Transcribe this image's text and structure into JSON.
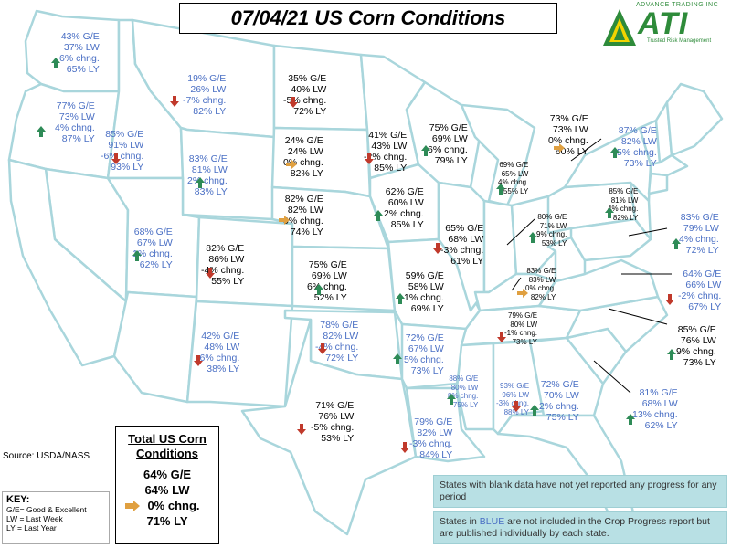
{
  "title": "07/04/21 US Corn Conditions",
  "logo": {
    "top_text": "ADVANCE TRADING INC",
    "name": "ATI",
    "tagline": "Trusted Risk Management",
    "color": "#2e8b3a"
  },
  "colors": {
    "blue_text": "#4a6fc4",
    "up_arrow": "#2e8b57",
    "down_arrow": "#c0392b",
    "neutral_arrow": "#e0a040",
    "state_fill": "#ffffff",
    "state_stroke": "#a9d6dc"
  },
  "states": [
    {
      "id": "wa",
      "color": "blue",
      "trend": "up",
      "lines": [
        "43% G/E",
        "37% LW",
        "6% chng.",
        "65% LY"
      ]
    },
    {
      "id": "or",
      "color": "blue",
      "trend": "up",
      "lines": [
        "77% G/E",
        "73% LW",
        "4% chng.",
        "87% LY"
      ]
    },
    {
      "id": "id",
      "color": "blue",
      "trend": "down",
      "lines": [
        "85% G/E",
        "91% LW",
        "-6% chng.",
        "93% LY"
      ]
    },
    {
      "id": "mt",
      "color": "blue",
      "trend": "down",
      "lines": [
        "19% G/E",
        "26% LW",
        "-7% chng.",
        "82% LY"
      ]
    },
    {
      "id": "wy",
      "color": "blue",
      "trend": "up",
      "lines": [
        "83% G/E",
        "81% LW",
        "2% chng.",
        "83% LY"
      ]
    },
    {
      "id": "ut",
      "color": "blue",
      "trend": "up",
      "lines": [
        "68% G/E",
        "67% LW",
        "1% chng.",
        "62% LY"
      ]
    },
    {
      "id": "nd",
      "color": "black",
      "trend": "down",
      "lines": [
        "35% G/E",
        "40% LW",
        "-5% chng.",
        "72% LY"
      ]
    },
    {
      "id": "sd",
      "color": "black",
      "trend": "flat",
      "lines": [
        "24% G/E",
        "24% LW",
        "0% chng.",
        "82% LY"
      ]
    },
    {
      "id": "ne",
      "color": "black",
      "trend": "flat",
      "lines": [
        "82% G/E",
        "82% LW",
        "0% chng.",
        "74% LY"
      ]
    },
    {
      "id": "co",
      "color": "black",
      "trend": "down",
      "lines": [
        "82% G/E",
        "86% LW",
        "-4% chng.",
        "55% LY"
      ]
    },
    {
      "id": "ks",
      "color": "black",
      "trend": "up",
      "lines": [
        "75% G/E",
        "69% LW",
        "6% chng.",
        "52% LY"
      ]
    },
    {
      "id": "nm",
      "color": "blue",
      "trend": "down",
      "lines": [
        "42% G/E",
        "48% LW",
        "-6% chng.",
        "38% LY"
      ]
    },
    {
      "id": "ok",
      "color": "blue",
      "trend": "down",
      "lines": [
        "78% G/E",
        "82% LW",
        "-4% chng.",
        "72% LY"
      ]
    },
    {
      "id": "tx",
      "color": "black",
      "trend": "down",
      "lines": [
        "71% G/E",
        "76% LW",
        "-5% chng.",
        "53% LY"
      ]
    },
    {
      "id": "mn",
      "color": "black",
      "trend": "down",
      "lines": [
        "41% G/E",
        "43% LW",
        "-2% chng.",
        "85% LY"
      ]
    },
    {
      "id": "ia",
      "color": "black",
      "trend": "up",
      "lines": [
        "62% G/E",
        "60% LW",
        "2% chng.",
        "85% LY"
      ]
    },
    {
      "id": "mo",
      "color": "black",
      "trend": "up",
      "lines": [
        "59% G/E",
        "58% LW",
        "1% chng.",
        "69% LY"
      ]
    },
    {
      "id": "ar",
      "color": "blue",
      "trend": "up",
      "lines": [
        "72% G/E",
        "67% LW",
        "5% chng.",
        "73% LY"
      ]
    },
    {
      "id": "la",
      "color": "blue",
      "trend": "down",
      "lines": [
        "79% G/E",
        "82% LW",
        "-3% chng.",
        "84% LY"
      ]
    },
    {
      "id": "wi",
      "color": "black",
      "trend": "up",
      "lines": [
        "75% G/E",
        "69% LW",
        "6% chng.",
        "79% LY"
      ]
    },
    {
      "id": "il",
      "color": "black",
      "trend": "down",
      "lines": [
        "65% G/E",
        "68% LW",
        "-3% chng.",
        "61% LY"
      ]
    },
    {
      "id": "mi",
      "color": "black",
      "trend": "flat",
      "lines": [
        "73% G/E",
        "73% LW",
        "0% chng.",
        "60% LY"
      ]
    },
    {
      "id": "in",
      "color": "black",
      "trend": "up",
      "size": "small",
      "lines": [
        "69% G/E",
        "65% LW",
        "4% chng.",
        "55% LY"
      ]
    },
    {
      "id": "oh",
      "color": "black",
      "trend": "up",
      "size": "small",
      "lines": [
        "80% G/E",
        "71% LW",
        "9% chng.",
        "53% LY"
      ]
    },
    {
      "id": "ky",
      "color": "black",
      "trend": "flat",
      "size": "small",
      "lines": [
        "83% G/E",
        "83% LW",
        "0% chng.",
        "82% LY"
      ]
    },
    {
      "id": "tn",
      "color": "black",
      "trend": "down",
      "size": "small",
      "lines": [
        "79% G/E",
        "80% LW",
        "-1% chng.",
        "73% LY"
      ]
    },
    {
      "id": "ms",
      "color": "blue",
      "trend": "up",
      "size": "small",
      "lines": [
        "88% G/E",
        "80% LW",
        "8% chng.",
        "75% LY"
      ]
    },
    {
      "id": "al",
      "color": "blue",
      "trend": "down",
      "size": "small",
      "lines": [
        "93% G/E",
        "96% LW",
        "-3% chng.",
        "88% LY"
      ]
    },
    {
      "id": "ga",
      "color": "blue",
      "trend": "up",
      "lines": [
        "72% G/E",
        "70% LW",
        "2% chng.",
        "75% LY"
      ]
    },
    {
      "id": "ny",
      "color": "black",
      "trend": "up",
      "size": "small",
      "lines": [
        "85% G/E",
        "81% LW",
        "4% chng.",
        "82% LY"
      ]
    },
    {
      "id": "vt",
      "color": "blue",
      "trend": "up",
      "lines": [
        "87% G/E",
        "82% LW",
        "5% chng.",
        "73% LY"
      ]
    },
    {
      "id": "pa",
      "color": "blue",
      "trend": "up",
      "lines": [
        "83% G/E",
        "79% LW",
        "4% chng.",
        "72% LY"
      ]
    },
    {
      "id": "md",
      "color": "blue",
      "trend": "down",
      "lines": [
        "64% G/E",
        "66% LW",
        "-2% chng.",
        "67% LY"
      ]
    },
    {
      "id": "nc",
      "color": "black",
      "trend": "up",
      "lines": [
        "85% G/E",
        "76% LW",
        "9% chng.",
        "73% LY"
      ]
    },
    {
      "id": "sc",
      "color": "blue",
      "trend": "up",
      "lines": [
        "81% G/E",
        "68% LW",
        "13% chng.",
        "62% LY"
      ]
    }
  ],
  "source": "Source: USDA/NASS",
  "key": {
    "title": "KEY:",
    "lines": [
      "G/E= Good & Excellent",
      "LW = Last Week",
      "LY = Last Year"
    ]
  },
  "total": {
    "title_line1": "Total US Corn",
    "title_line2": "Conditions",
    "trend": "flat",
    "ge": "64% G/E",
    "lw": "64% LW",
    "chng": "0% chng.",
    "ly": "71% LY"
  },
  "notes": {
    "note1": "States with blank data have not yet reported any progress for any period",
    "note2_prefix": "States in ",
    "note2_highlight": "BLUE",
    "note2_suffix": " are not included in the Crop Progress report but are published individually by each state."
  }
}
